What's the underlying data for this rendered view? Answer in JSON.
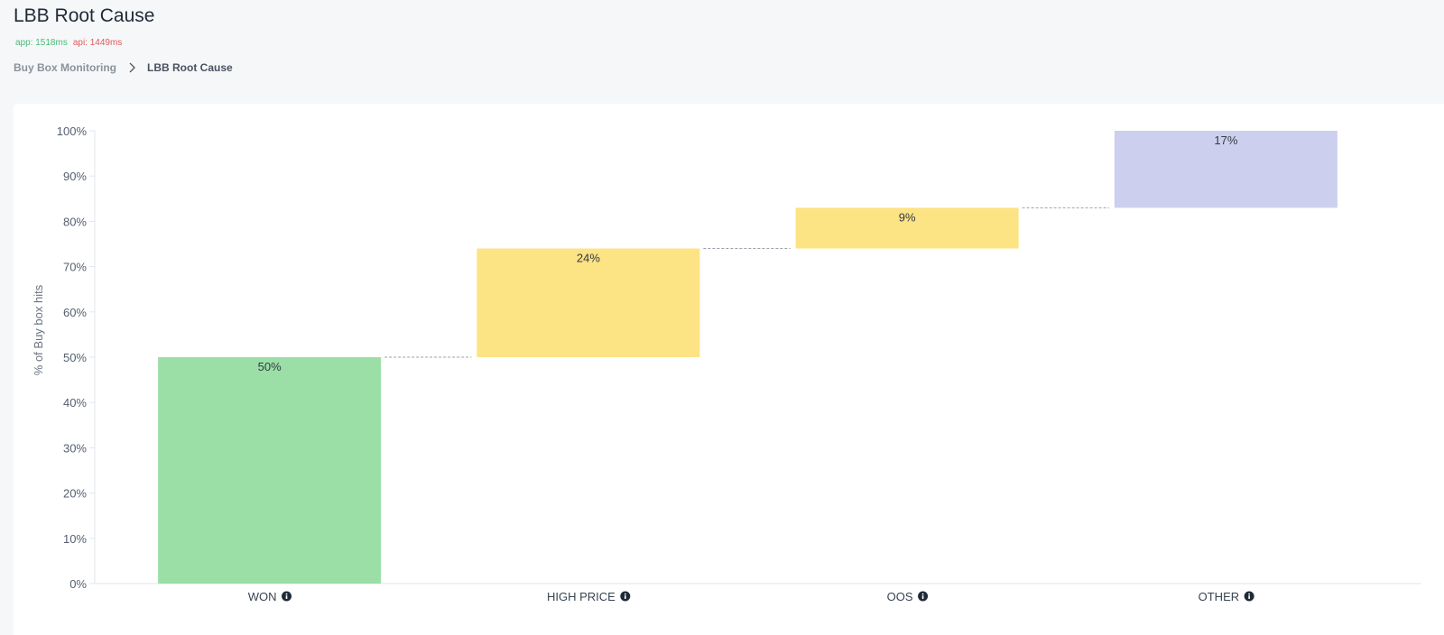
{
  "page": {
    "title": "LBB Root Cause",
    "timing_app": "app: 1518ms",
    "timing_api": "api: 1449ms"
  },
  "breadcrumb": {
    "parent": "Buy Box Monitoring",
    "current": "LBB Root Cause"
  },
  "colors": {
    "won": "#9bdfa6",
    "loss": "#fce384",
    "other": "#cdcfee",
    "connector": "#9aa1aa"
  },
  "chart_data": {
    "type": "waterfall",
    "ylabel": "% of Buy box hits",
    "ylim": [
      0,
      100
    ],
    "yticks": [
      "0%",
      "10%",
      "20%",
      "30%",
      "40%",
      "50%",
      "60%",
      "70%",
      "80%",
      "90%",
      "100%"
    ],
    "categories": [
      "WON",
      "HIGH PRICE",
      "OOS",
      "OTHER"
    ],
    "values": [
      50,
      24,
      9,
      17
    ],
    "value_labels": [
      "50%",
      "24%",
      "9%",
      "17%"
    ],
    "bar_colors": [
      "won",
      "loss",
      "loss",
      "other"
    ],
    "info_icon": "info-circle-icon"
  }
}
